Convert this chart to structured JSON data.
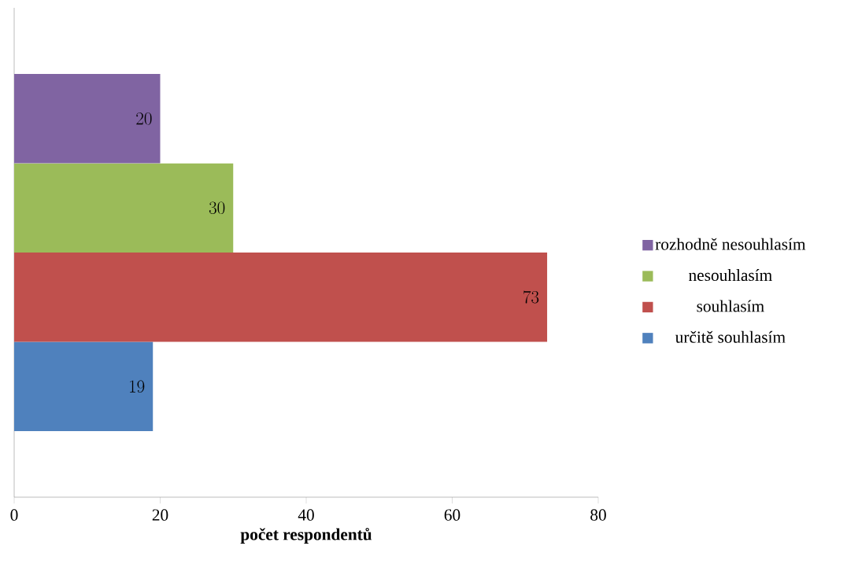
{
  "chart_data": {
    "type": "bar",
    "orientation": "horizontal",
    "categories": [
      null
    ],
    "series": [
      {
        "name": "určitě souhlasím",
        "color": "#4f81bd",
        "values": [
          19
        ]
      },
      {
        "name": "souhlasím",
        "color": "#c0504d",
        "values": [
          73
        ]
      },
      {
        "name": "nesouhlasím",
        "color": "#9bbb59",
        "values": [
          30
        ]
      },
      {
        "name": "rozhodně nesouhlasím",
        "color": "#8064a2",
        "values": [
          20
        ]
      }
    ],
    "xlabel": "počet respondentů",
    "xlim": [
      0,
      80
    ],
    "xticks": [
      0,
      20,
      40,
      60,
      80
    ],
    "data_labels": true,
    "legend": "right",
    "grid": false
  }
}
